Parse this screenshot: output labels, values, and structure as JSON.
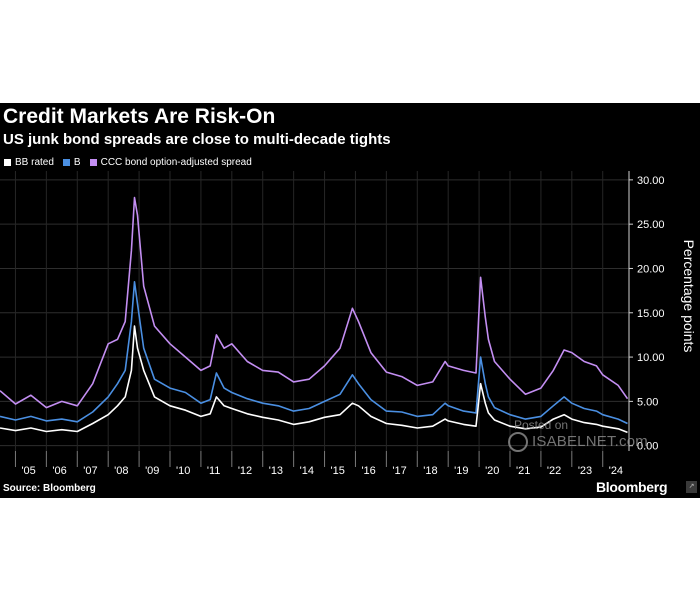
{
  "chart_data": {
    "type": "line",
    "title": "Credit Markets Are Risk-On",
    "subtitle": "US junk bond spreads are close to multi-decade tights",
    "xlabel": "",
    "ylabel": "Percentage points",
    "xlim": [
      2004.5,
      2024.85
    ],
    "ylim": [
      -0.6,
      31.0
    ],
    "x_ticks": [
      {
        "label": "'05",
        "x": 2005
      },
      {
        "label": "'06",
        "x": 2006
      },
      {
        "label": "'07",
        "x": 2007
      },
      {
        "label": "'08",
        "x": 2008
      },
      {
        "label": "'09",
        "x": 2009
      },
      {
        "label": "'10",
        "x": 2010
      },
      {
        "label": "'11",
        "x": 2011
      },
      {
        "label": "'12",
        "x": 2012
      },
      {
        "label": "'13",
        "x": 2013
      },
      {
        "label": "'14",
        "x": 2014
      },
      {
        "label": "'15",
        "x": 2015
      },
      {
        "label": "'16",
        "x": 2016
      },
      {
        "label": "'17",
        "x": 2017
      },
      {
        "label": "'18",
        "x": 2018
      },
      {
        "label": "'19",
        "x": 2019
      },
      {
        "label": "'20",
        "x": 2020
      },
      {
        "label": "'21",
        "x": 2021
      },
      {
        "label": "'22",
        "x": 2022
      },
      {
        "label": "'23",
        "x": 2023
      },
      {
        "label": "'24",
        "x": 2024
      }
    ],
    "y_ticks": [
      {
        "label": "30.00",
        "value": 30
      },
      {
        "label": "25.00",
        "value": 25
      },
      {
        "label": "20.00",
        "value": 20
      },
      {
        "label": "15.00",
        "value": 15
      },
      {
        "label": "10.00",
        "value": 10
      },
      {
        "label": "5.00",
        "value": 5
      },
      {
        "label": "0.00",
        "value": 0
      }
    ],
    "x": [
      2004.5,
      2005.0,
      2005.5,
      2006.0,
      2006.5,
      2007.0,
      2007.5,
      2008.0,
      2008.3,
      2008.55,
      2008.75,
      2008.85,
      2008.95,
      2009.15,
      2009.5,
      2010.0,
      2010.5,
      2011.0,
      2011.3,
      2011.5,
      2011.75,
      2012.0,
      2012.5,
      2013.0,
      2013.5,
      2014.0,
      2014.5,
      2015.0,
      2015.5,
      2015.9,
      2016.1,
      2016.5,
      2017.0,
      2017.5,
      2018.0,
      2018.5,
      2018.9,
      2019.0,
      2019.5,
      2019.9,
      2020.05,
      2020.2,
      2020.3,
      2020.5,
      2021.0,
      2021.5,
      2022.0,
      2022.4,
      2022.75,
      2023.0,
      2023.4,
      2023.8,
      2024.0,
      2024.5,
      2024.8
    ],
    "series": [
      {
        "name": "CCC bond option-adjusted spread",
        "color": "#c38ef2",
        "values": [
          6.2,
          4.7,
          5.7,
          4.3,
          5.0,
          4.5,
          7.0,
          11.5,
          12.0,
          14.0,
          22.0,
          28.0,
          26.0,
          18.0,
          13.5,
          11.5,
          10.0,
          8.5,
          9.0,
          12.5,
          11.0,
          11.5,
          9.5,
          8.5,
          8.3,
          7.2,
          7.5,
          9.0,
          11.0,
          15.5,
          14.0,
          10.5,
          8.3,
          7.8,
          6.8,
          7.2,
          9.5,
          9.0,
          8.5,
          8.2,
          19.0,
          14.5,
          12.0,
          9.5,
          7.5,
          5.8,
          6.5,
          8.5,
          10.8,
          10.5,
          9.5,
          9.0,
          8.0,
          6.8,
          5.3
        ]
      },
      {
        "name": "B",
        "color": "#4a8fe2",
        "values": [
          3.3,
          2.9,
          3.3,
          2.8,
          3.0,
          2.7,
          3.8,
          5.5,
          7.0,
          8.5,
          14.0,
          18.5,
          16.0,
          11.0,
          7.5,
          6.5,
          6.0,
          4.8,
          5.2,
          8.2,
          6.5,
          6.0,
          5.3,
          4.8,
          4.5,
          3.9,
          4.2,
          5.0,
          5.8,
          8.0,
          7.0,
          5.2,
          3.9,
          3.8,
          3.3,
          3.5,
          4.8,
          4.5,
          3.9,
          3.7,
          10.0,
          7.0,
          5.5,
          4.3,
          3.5,
          3.0,
          3.3,
          4.5,
          5.5,
          4.8,
          4.2,
          3.9,
          3.5,
          3.0,
          2.5
        ]
      },
      {
        "name": "BB rated",
        "color": "#ffffff",
        "values": [
          2.0,
          1.7,
          2.0,
          1.6,
          1.8,
          1.6,
          2.5,
          3.5,
          4.5,
          5.5,
          8.5,
          13.5,
          11.0,
          8.5,
          5.5,
          4.5,
          4.0,
          3.3,
          3.6,
          5.5,
          4.5,
          4.2,
          3.6,
          3.2,
          2.9,
          2.4,
          2.7,
          3.2,
          3.5,
          4.8,
          4.5,
          3.3,
          2.5,
          2.3,
          2.0,
          2.2,
          3.0,
          2.8,
          2.4,
          2.2,
          7.0,
          4.8,
          3.7,
          2.9,
          2.2,
          1.9,
          2.1,
          3.0,
          3.5,
          3.0,
          2.6,
          2.4,
          2.2,
          1.9,
          1.5
        ]
      }
    ],
    "legend": [
      {
        "label": "BB rated",
        "color": "#ffffff"
      },
      {
        "label": "B",
        "color": "#4a8fe2"
      },
      {
        "label": "CCC bond option-adjusted spread",
        "color": "#c38ef2"
      }
    ],
    "legend_position": "top-left",
    "grid": true
  },
  "footer": {
    "source": "Source: Bloomberg",
    "brand": "Bloomberg",
    "badge": "↗"
  },
  "watermark": {
    "line1": "Posted on",
    "line2": "ISABELNET.com"
  }
}
